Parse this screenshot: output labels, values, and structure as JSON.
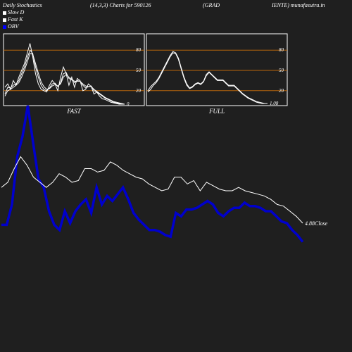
{
  "header": {
    "title_left": "Daily Stochastics",
    "params": "(14,3,3) Charts for 590126",
    "name_part1": "(GRAD",
    "name_part2": "IENTE) munafasutra.in"
  },
  "legend": [
    {
      "label": "Slow  D",
      "color": "#ffffff"
    },
    {
      "label": "Fast K",
      "color": "#ffffff"
    },
    {
      "label": "OBV",
      "color": "#0000ff"
    }
  ],
  "colors": {
    "background": "#1f1f1f",
    "panel_border": "#ffffff",
    "level_line": "#b8660b",
    "stoch_line": "#ffffff",
    "obv_line": "#0000cc",
    "close_line": "#ffffff"
  },
  "chart_data": [
    {
      "type": "line",
      "panel": "FAST",
      "title": "FAST",
      "last_value_label": "0",
      "ylim": [
        0,
        100
      ],
      "yticks": [
        20,
        50,
        80
      ],
      "levels": [
        20,
        50,
        80
      ],
      "x": [
        0,
        1,
        2,
        3,
        4,
        5,
        6,
        7,
        8,
        9,
        10,
        11,
        12,
        13,
        14,
        15,
        16,
        17,
        18,
        19,
        20,
        21,
        22,
        23,
        24,
        25,
        26,
        27,
        28,
        29,
        30,
        31,
        32,
        33,
        34,
        35,
        36,
        37,
        38,
        39,
        40,
        41,
        42,
        43
      ],
      "series": [
        {
          "values": [
            25,
            30,
            22,
            35,
            28,
            40,
            50,
            60,
            75,
            90,
            70,
            45,
            30,
            22,
            20,
            18,
            28,
            35,
            30,
            20,
            40,
            55,
            45,
            28,
            40,
            25,
            38,
            35,
            20,
            22,
            30,
            26,
            15,
            18,
            12,
            8,
            7,
            5,
            3,
            2,
            1,
            0,
            0,
            0
          ]
        },
        {
          "values": [
            15,
            25,
            24,
            28,
            30,
            35,
            45,
            55,
            68,
            80,
            75,
            55,
            40,
            28,
            22,
            20,
            24,
            30,
            31,
            26,
            32,
            45,
            47,
            38,
            36,
            32,
            35,
            34,
            28,
            24,
            26,
            27,
            20,
            18,
            15,
            12,
            9,
            7,
            5,
            3,
            2,
            1,
            0,
            0
          ]
        },
        {
          "values": [
            12,
            20,
            22,
            25,
            28,
            32,
            40,
            50,
            62,
            75,
            74,
            60,
            46,
            33,
            26,
            22,
            23,
            27,
            29,
            27,
            30,
            40,
            44,
            40,
            37,
            34,
            34,
            34,
            30,
            27,
            26,
            26,
            22,
            19,
            16,
            13,
            10,
            8,
            6,
            4,
            3,
            2,
            1,
            0
          ]
        }
      ]
    },
    {
      "type": "line",
      "panel": "FULL",
      "title": "FULL",
      "last_value_label": "1.08",
      "ylim": [
        0,
        100
      ],
      "yticks": [
        20,
        50,
        80
      ],
      "levels": [
        20,
        50,
        80
      ],
      "x": [
        0,
        1,
        2,
        3,
        4,
        5,
        6,
        7,
        8,
        9,
        10,
        11,
        12,
        13,
        14,
        15,
        16,
        17,
        18,
        19,
        20,
        21,
        22,
        23,
        24,
        25,
        26,
        27,
        28,
        29,
        30,
        31,
        32,
        33,
        34,
        35,
        36,
        37,
        38,
        39,
        40,
        41,
        42,
        43
      ],
      "series": [
        {
          "values": [
            20,
            26,
            30,
            34,
            40,
            48,
            56,
            64,
            72,
            78,
            76,
            68,
            54,
            40,
            30,
            24,
            26,
            30,
            32,
            30,
            34,
            44,
            48,
            44,
            40,
            36,
            36,
            36,
            32,
            28,
            28,
            28,
            24,
            20,
            16,
            13,
            10,
            8,
            6,
            4,
            3,
            2,
            1,
            1.08
          ]
        },
        {
          "values": [
            18,
            22,
            28,
            32,
            38,
            46,
            54,
            62,
            70,
            76,
            75,
            66,
            52,
            38,
            28,
            23,
            25,
            29,
            31,
            29,
            33,
            42,
            47,
            43,
            39,
            35,
            35,
            35,
            31,
            27,
            27,
            27,
            23,
            19,
            15,
            12,
            9,
            7,
            5,
            3,
            2,
            1,
            1,
            1.08
          ]
        }
      ]
    },
    {
      "type": "line",
      "panel": "PRICE",
      "last_value_label": "4.88Close",
      "series": [
        {
          "name": "OBV",
          "values": [
            30,
            30,
            42,
            70,
            82,
            100,
            78,
            57,
            52,
            38,
            30,
            27,
            38,
            31,
            38,
            42,
            45,
            37,
            52,
            42,
            47,
            44,
            48,
            52,
            45,
            37,
            33,
            30,
            27,
            27,
            26,
            24,
            23,
            37,
            35,
            39,
            39,
            40,
            42,
            44,
            42,
            37,
            35,
            38,
            40,
            40,
            43,
            41,
            41,
            40,
            38,
            38,
            35,
            32,
            31,
            27,
            24,
            20
          ]
        },
        {
          "name": "Close",
          "values": [
            52,
            55,
            63,
            70,
            65,
            58,
            55,
            52,
            55,
            60,
            58,
            55,
            56,
            63,
            63,
            61,
            62,
            67,
            65,
            62,
            60,
            58,
            57,
            54,
            52,
            50,
            51,
            58,
            58,
            54,
            56,
            50,
            55,
            53,
            51,
            50,
            50,
            52,
            50,
            49,
            48,
            47,
            45,
            42,
            41,
            38,
            35,
            31
          ]
        }
      ]
    }
  ]
}
